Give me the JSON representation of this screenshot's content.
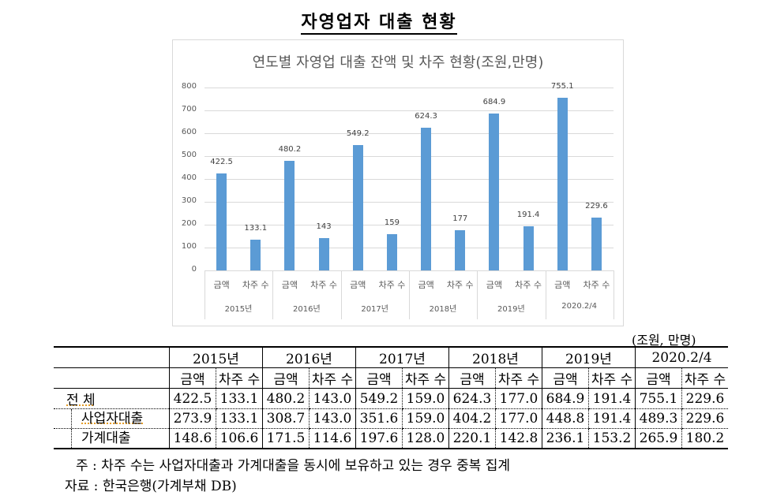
{
  "document": {
    "title": "자영업자 대출 현황",
    "unit_label": "(조원, 만명)",
    "notes": [
      "주 : 차주 수는 사업자대출과 가계대출을 동시에 보유하고 있는 경우 중복 집계",
      "자료 : 한국은행(가계부채 DB)"
    ]
  },
  "chart_data": {
    "type": "bar",
    "title": "연도별 자영업 대출 잔액 및 차주 현황(조원,만명)",
    "xlabel": "",
    "ylabel": "",
    "ylim": [
      0,
      800
    ],
    "yticks": [
      0,
      100,
      200,
      300,
      400,
      500,
      600,
      700,
      800
    ],
    "grid": true,
    "legend": "none",
    "groups": [
      "2015년",
      "2016년",
      "2017년",
      "2018년",
      "2019년",
      "2020.2/4"
    ],
    "subcategories": [
      "금액",
      "차주 수"
    ],
    "categories": [
      "2015년 금액",
      "2015년 차주 수",
      "2016년 금액",
      "2016년 차주 수",
      "2017년 금액",
      "2017년 차주 수",
      "2018년 금액",
      "2018년 차주 수",
      "2019년 금액",
      "2019년 차주 수",
      "2020.2/4 금액",
      "2020.2/4 차주 수"
    ],
    "values": [
      422.5,
      133.1,
      480.2,
      143,
      549.2,
      159,
      624.3,
      177,
      684.9,
      191.4,
      755.1,
      229.6
    ],
    "labels": [
      "422.5",
      "133.1",
      "480.2",
      "143",
      "549.2",
      "159",
      "624.3",
      "177",
      "684.9",
      "191.4",
      "755.1",
      "229.6"
    ],
    "bar_color": "#5b9bd5"
  },
  "table": {
    "years": [
      "2015년",
      "2016년",
      "2017년",
      "2018년",
      "2019년",
      "2020.2/4"
    ],
    "sub_headers": [
      "금액",
      "차주 수"
    ],
    "rows": [
      {
        "label": "전    체",
        "values": [
          "422.5",
          "133.1",
          "480.2",
          "143.0",
          "549.2",
          "159.0",
          "624.3",
          "177.0",
          "684.9",
          "191.4",
          "755.1",
          "229.6"
        ]
      },
      {
        "label": "사업자대출",
        "values": [
          "273.9",
          "133.1",
          "308.7",
          "143.0",
          "351.6",
          "159.0",
          "404.2",
          "177.0",
          "448.8",
          "191.4",
          "489.3",
          "229.6"
        ]
      },
      {
        "label": "가계대출",
        "values": [
          "148.6",
          "106.6",
          "171.5",
          "114.6",
          "197.6",
          "128.0",
          "220.1",
          "142.8",
          "236.1",
          "153.2",
          "265.9",
          "180.2"
        ]
      }
    ]
  }
}
